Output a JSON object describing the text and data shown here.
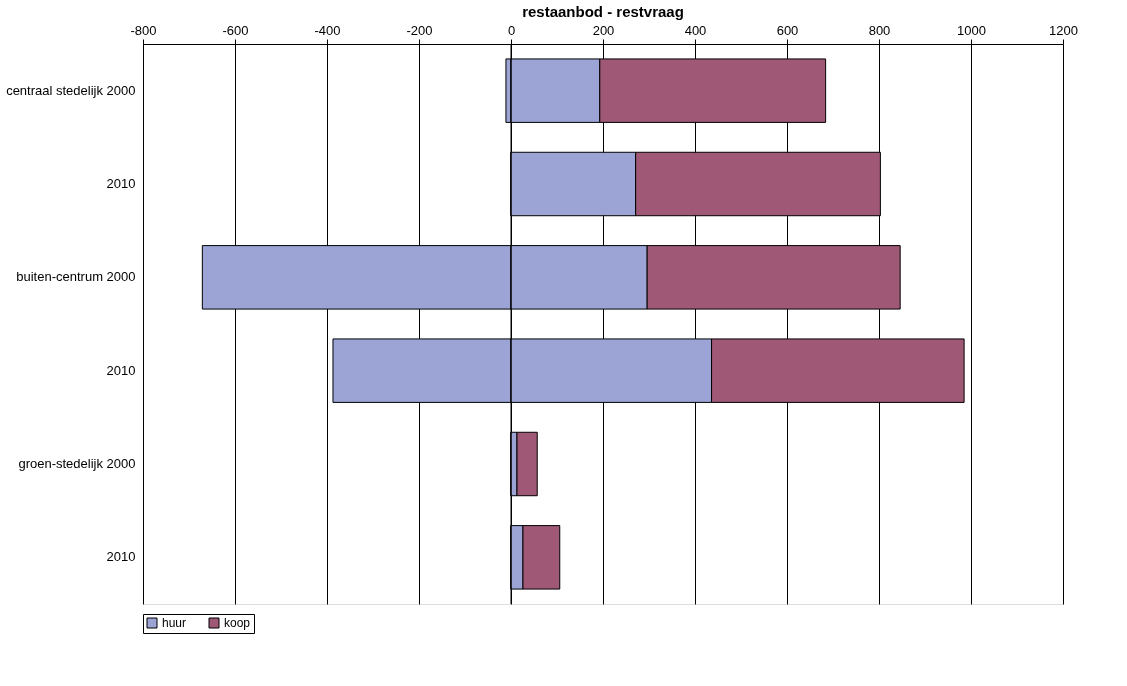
{
  "chart_data": {
    "type": "bar",
    "orientation": "horizontal",
    "stacked": true,
    "title": "restaanbod - restvraag",
    "categories": [
      "centraal stedelijk 2000",
      "2010",
      "buiten-centrum 2000",
      "2010",
      "groen-stedelijk 2000",
      "2010"
    ],
    "series": [
      {
        "name": "huur",
        "color": "#9ba4d5",
        "values": [
          -11,
          0,
          -671,
          -387,
          0,
          0
        ]
      },
      {
        "color": "#9ba4d5",
        "values": [
          193,
          271,
          296,
          436,
          13,
          26
        ]
      },
      {
        "name": "koop",
        "color": "#9f5876",
        "values": [
          491,
          532,
          550,
          549,
          44,
          80
        ]
      }
    ],
    "xlim": [
      -800,
      1200
    ],
    "xticks": [
      -800,
      -600,
      -400,
      -200,
      0,
      200,
      400,
      600,
      800,
      1000,
      1200
    ],
    "grid": "x",
    "legend": "bottom left"
  }
}
